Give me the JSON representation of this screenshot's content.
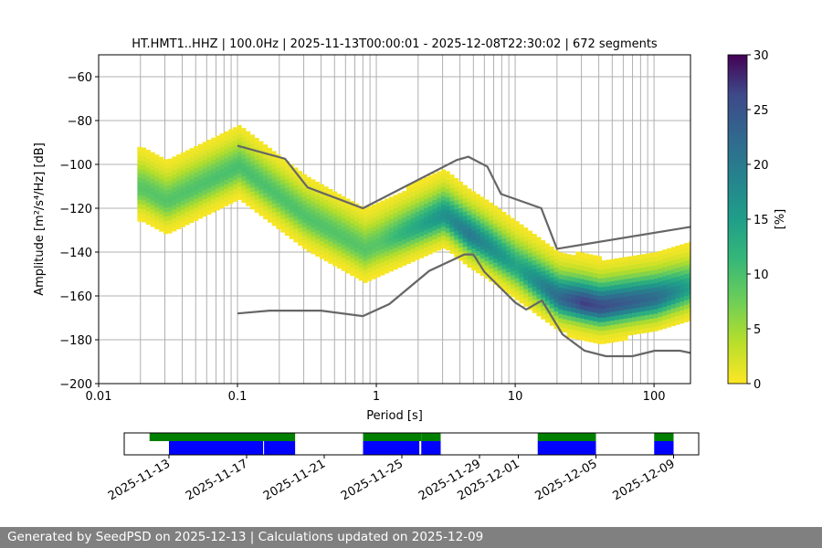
{
  "chart_data": {
    "type": "heatmap",
    "title": "HT.HMT1..HHZ | 100.0Hz | 2025-11-13T00:00:01 - 2025-12-08T22:30:02 | 672 segments",
    "xlabel": "Period [s]",
    "ylabel": "Amplitude [m²/s⁴/Hz] [dB]",
    "xscale": "log",
    "xlim": [
      0.01,
      183
    ],
    "ylim": [
      -200,
      -50
    ],
    "xticks": [
      0.01,
      0.1,
      1,
      10,
      100
    ],
    "xtick_labels": [
      "0.01",
      "0.1",
      "1",
      "10",
      "100"
    ],
    "yticks": [
      -200,
      -180,
      -160,
      -140,
      -120,
      -100,
      -80,
      -60
    ],
    "ytick_labels": [
      "−200",
      "−180",
      "−160",
      "−140",
      "−120",
      "−100",
      "−80",
      "−60"
    ],
    "grid": true,
    "colorbar": {
      "label": "[%]",
      "range": [
        0,
        30
      ],
      "ticks": [
        "0",
        "5",
        "10",
        "15",
        "20",
        "25",
        "30"
      ]
    },
    "mode_curve": [
      [
        0.02,
        -112
      ],
      [
        0.03,
        -118
      ],
      [
        0.1,
        -102
      ],
      [
        0.3,
        -125
      ],
      [
        0.8,
        -140
      ],
      [
        3,
        -124
      ],
      [
        4.5,
        -133
      ],
      [
        6,
        -138
      ],
      [
        10,
        -148
      ],
      [
        20,
        -162
      ],
      [
        40,
        -166
      ],
      [
        100,
        -162
      ],
      [
        183,
        -157
      ]
    ],
    "mode_peak_percent": [
      [
        0.02,
        9
      ],
      [
        0.1,
        10
      ],
      [
        1,
        9
      ],
      [
        4.5,
        20
      ],
      [
        10,
        14
      ],
      [
        30,
        27
      ],
      [
        100,
        22
      ],
      [
        183,
        14
      ]
    ],
    "series": [
      {
        "name": "NHNM",
        "color": "#666666",
        "points": [
          [
            0.1,
            -91.5
          ],
          [
            0.22,
            -97.4
          ],
          [
            0.32,
            -110.5
          ],
          [
            0.8,
            -120
          ],
          [
            3.8,
            -98
          ],
          [
            4.6,
            -96.5
          ],
          [
            6.3,
            -101
          ],
          [
            7.9,
            -113.5
          ],
          [
            15.4,
            -120
          ],
          [
            20,
            -138.5
          ],
          [
            183,
            -128.5
          ]
        ]
      },
      {
        "name": "NLNM",
        "color": "#666666",
        "points": [
          [
            0.1,
            -168
          ],
          [
            0.17,
            -166.7
          ],
          [
            0.4,
            -166.7
          ],
          [
            0.8,
            -169.2
          ],
          [
            1.24,
            -163.7
          ],
          [
            2.4,
            -148.6
          ],
          [
            4.3,
            -141.1
          ],
          [
            5,
            -141.1
          ],
          [
            6,
            -149
          ],
          [
            10,
            -163
          ],
          [
            12,
            -166.2
          ],
          [
            15.6,
            -162.1
          ],
          [
            21.9,
            -177.5
          ],
          [
            31.6,
            -185
          ],
          [
            45,
            -187.5
          ],
          [
            70,
            -187.5
          ],
          [
            101,
            -185
          ],
          [
            154,
            -185
          ],
          [
            183,
            -186
          ]
        ]
      }
    ]
  },
  "timeline": {
    "date_labels": [
      "2025-11-13",
      "2025-11-17",
      "2025-11-21",
      "2025-11-25",
      "2025-11-29",
      "2025-12-01",
      "2025-12-05",
      "2025-12-09"
    ],
    "date_offsets_days": [
      0,
      4,
      8,
      12,
      16,
      18,
      22,
      26
    ],
    "green_ranges_days": [
      [
        -1.0,
        6.5
      ],
      [
        10.0,
        13.0
      ],
      [
        13.0,
        14.0
      ],
      [
        19.0,
        22.0
      ],
      [
        25.0,
        26.0
      ]
    ],
    "blue_ranges_days": [
      [
        0,
        4.85
      ],
      [
        4.9,
        6.5
      ],
      [
        10.0,
        12.9
      ],
      [
        13.0,
        14.0
      ],
      [
        19.0,
        22.0
      ],
      [
        25.0,
        26.0
      ]
    ],
    "colors": {
      "green": "#008000",
      "blue": "#0000ff"
    }
  },
  "footer": {
    "text": "Generated by SeedPSD on 2025-12-13 | Calculations updated on 2025-12-09"
  }
}
